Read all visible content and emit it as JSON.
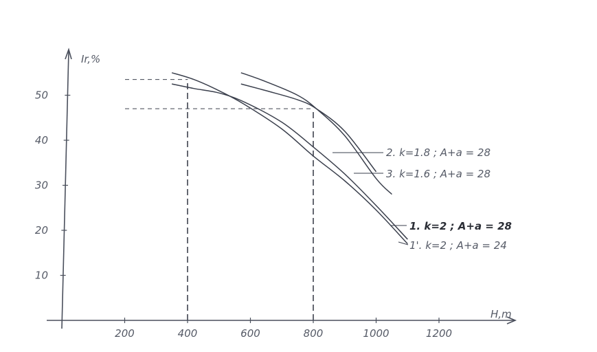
{
  "chart_data": {
    "type": "line",
    "title": "",
    "xlabel": "H,m",
    "ylabel": "Ir,%",
    "xlim": [
      0,
      1400
    ],
    "ylim": [
      0,
      55
    ],
    "grid": false,
    "legend": "inline labels at line ends",
    "x_ticks": [
      "200",
      "400",
      "600",
      "800",
      "1000",
      "1200"
    ],
    "y_ticks": [
      "10",
      "20",
      "30",
      "40",
      "50"
    ],
    "series": [
      {
        "name": "1. k=2 ; A+a = 28",
        "x": [
          350,
          420,
          500,
          580,
          700,
          800,
          900,
          1000,
          1100
        ],
        "y": [
          52.5,
          51.5,
          50.5,
          48.5,
          44,
          38.5,
          32.5,
          25.5,
          18
        ]
      },
      {
        "name": "1'. k=2 ; A+a = 24",
        "x": [
          350,
          420,
          500,
          580,
          700,
          800,
          900,
          1000,
          1100
        ],
        "y": [
          55,
          53.5,
          51,
          48,
          42.5,
          36.5,
          31,
          24.5,
          17
        ]
      },
      {
        "name": "2. k=1.8 ; A+a = 28",
        "x": [
          570,
          650,
          750,
          810,
          900,
          1000,
          1050
        ],
        "y": [
          55,
          53,
          50,
          47,
          41,
          31.5,
          28
        ]
      },
      {
        "name": "3. k=1.6 ; A+a = 28",
        "x": [
          570,
          650,
          750,
          810,
          900,
          1000
        ],
        "y": [
          52.5,
          51,
          49,
          47,
          42,
          33
        ]
      }
    ],
    "reference_lines": [
      {
        "x": 400,
        "y": 53.5
      },
      {
        "x": 800,
        "y": 47
      }
    ]
  },
  "colors": {
    "axis": "#4a4f5c",
    "curve": "#3a3f4c",
    "dashed": "#3d414d",
    "text": "#555a66"
  }
}
